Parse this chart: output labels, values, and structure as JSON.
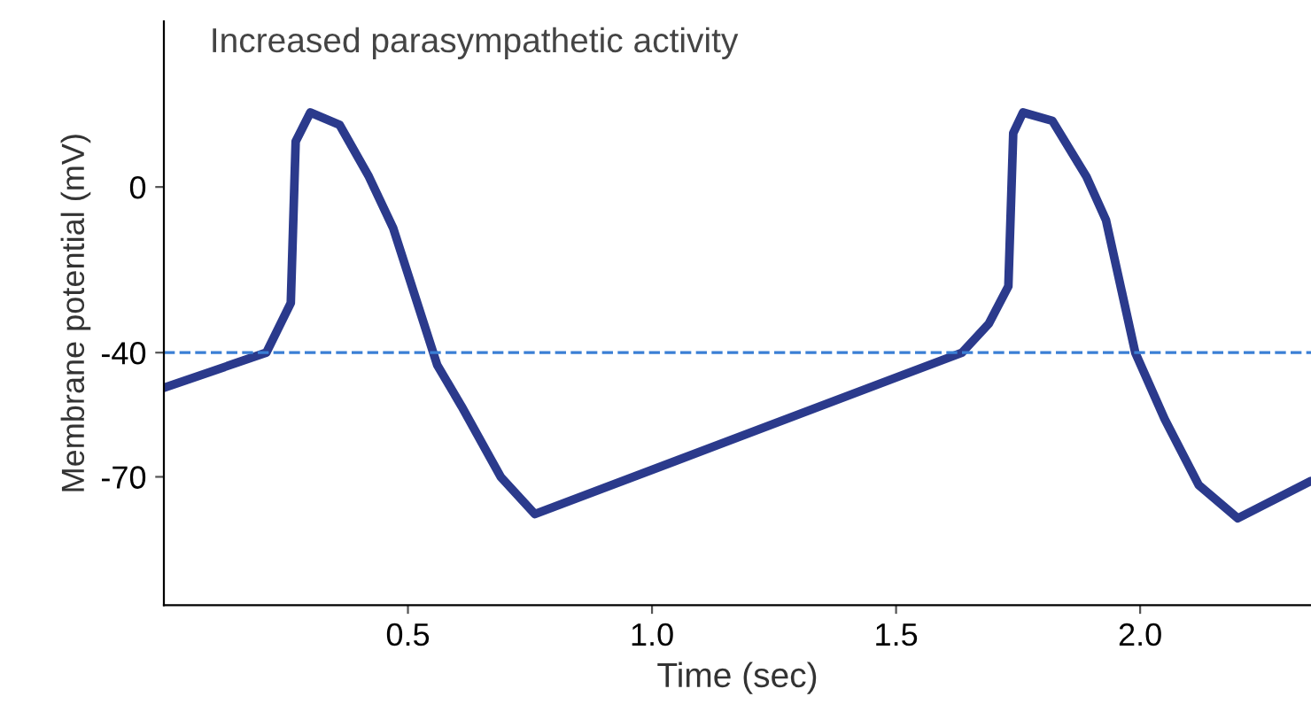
{
  "chart_data": {
    "type": "line",
    "title": "Increased parasympathetic activity",
    "xlabel": "Time (sec)",
    "ylabel": "Membrane potential (mV)",
    "x": [
      0,
      0.21,
      0.26,
      0.27,
      0.3,
      0.36,
      0.42,
      0.47,
      0.56,
      0.61,
      0.69,
      0.76,
      1.635,
      1.69,
      1.73,
      1.74,
      1.76,
      1.82,
      1.89,
      1.93,
      1.99,
      2.05,
      2.12,
      2.2,
      2.35
    ],
    "series": [
      {
        "color": "#2b3a8c",
        "values": [
          -48.5,
          -40,
          -28,
          11,
          18,
          15,
          2.5,
          -10,
          -43,
          -53,
          -70,
          -79,
          -40,
          -33,
          -24,
          13,
          18,
          16,
          2.5,
          -8,
          -40,
          -56,
          -72,
          -80,
          -71
        ]
      }
    ],
    "xlim": [
      0,
      2.35
    ],
    "ylim": [
      -101,
      40
    ],
    "xticks": [
      0.5,
      {
        "value": 1,
        "label": "1.0"
      },
      1.5,
      {
        "value": 2,
        "label": "2.0"
      }
    ],
    "yticks": [
      0,
      -40,
      -70
    ],
    "ref_lines": [
      {
        "axis": "y",
        "value": -40,
        "color": "#3a7fd5",
        "line_style": "dashed"
      }
    ],
    "grid": false,
    "line_style": "solid",
    "marker": "none"
  }
}
